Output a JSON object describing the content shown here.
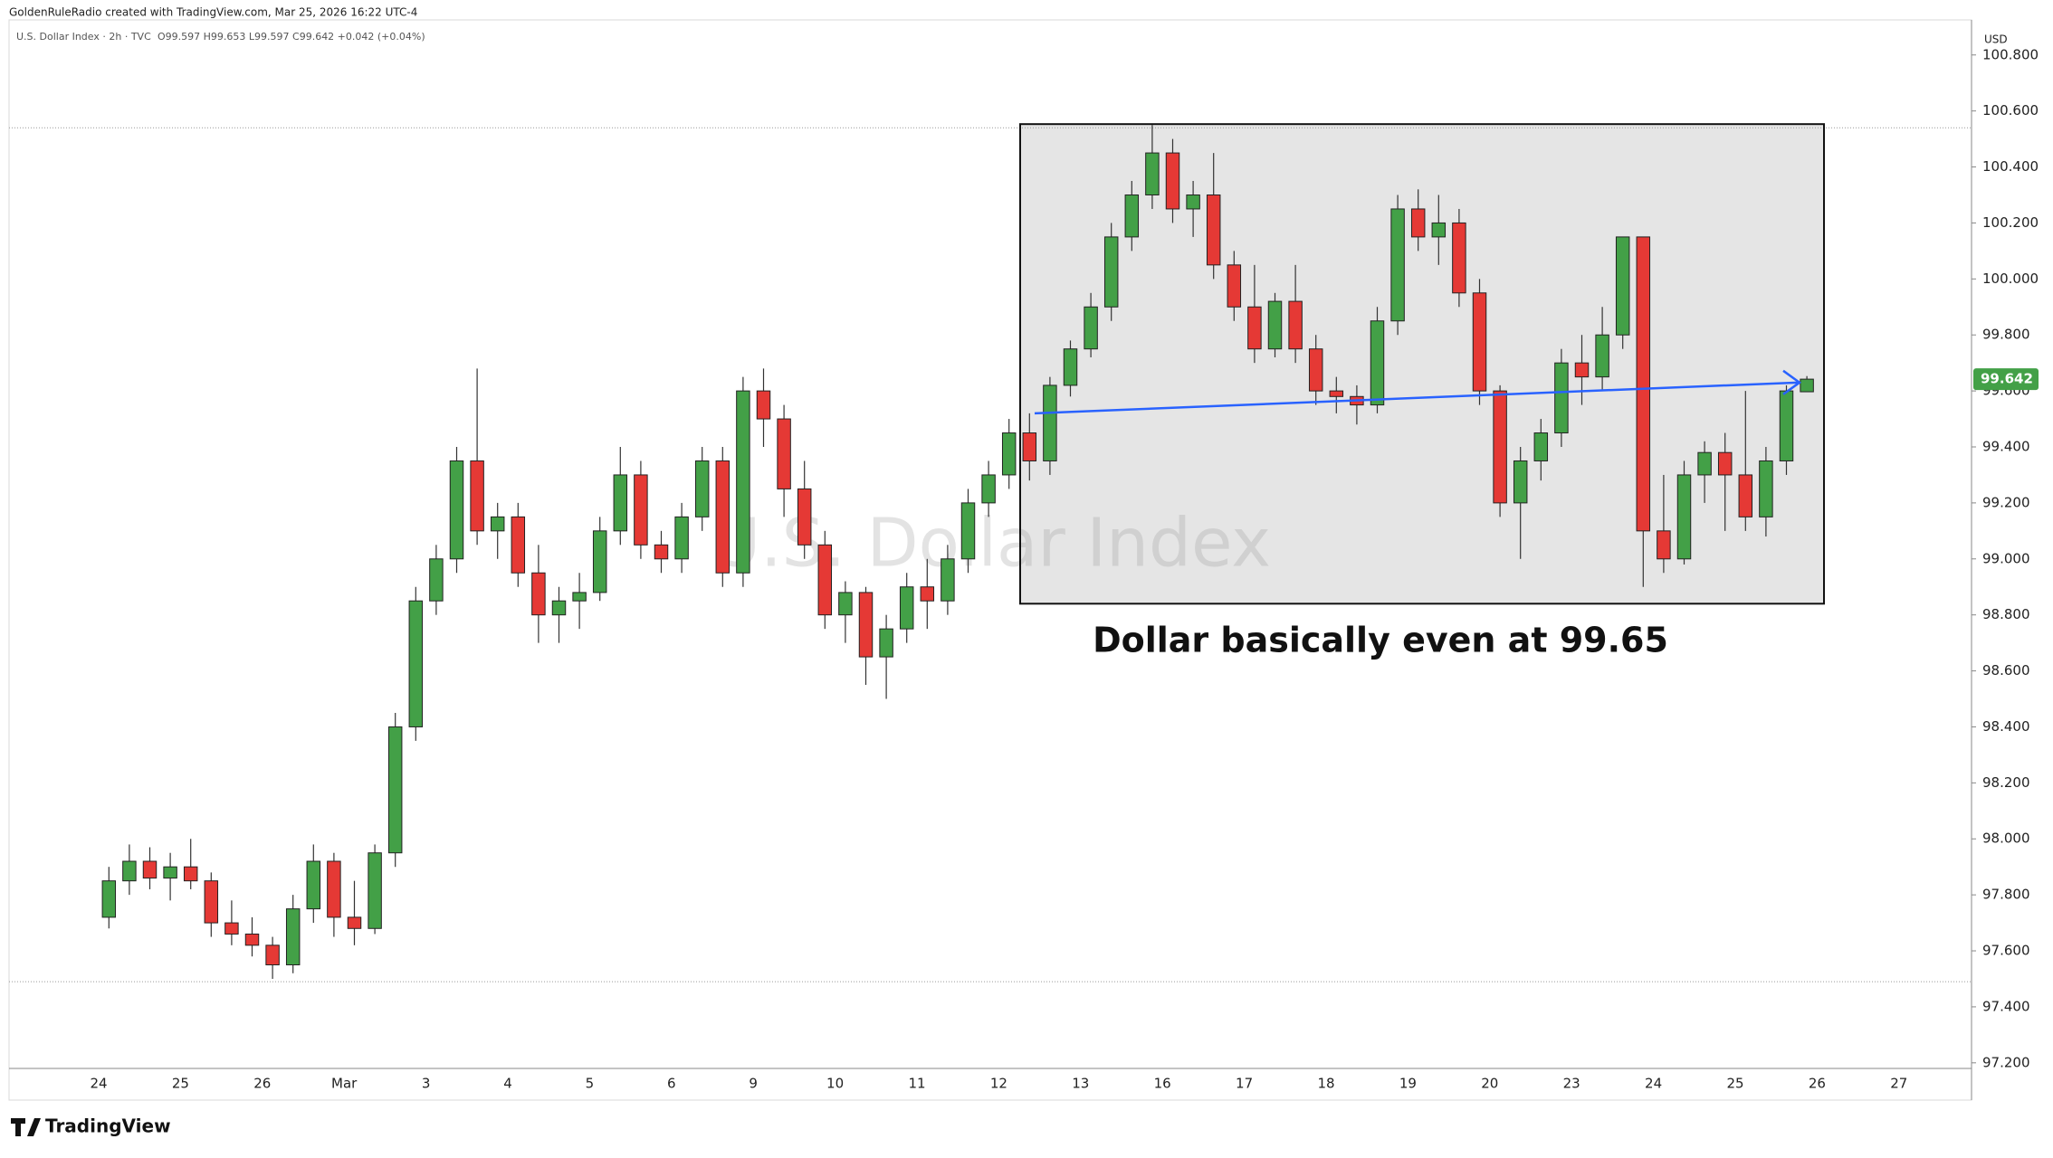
{
  "header": "GoldenRuleRadio created with TradingView.com, Mar 25, 2026 16:22 UTC-4",
  "symbol": "U.S. Dollar Index · 2h · TVC",
  "ohlc_summary": "O99.597 H99.653 L99.597 C99.642 +0.042 (+0.04%)",
  "brand": "TradingView",
  "chart_data": {
    "type": "candlestick",
    "watermark": "U.S. Dollar Index",
    "annotation": "Dollar basically even at 99.65",
    "currency": "USD",
    "current_price": {
      "value": 99.642,
      "label": "99.642"
    },
    "up_color": "#43a047",
    "down_color": "#e53935",
    "categories": [
      "24",
      "25",
      "26",
      "Mar",
      "3",
      "4",
      "5",
      "6",
      "9",
      "10",
      "11",
      "12",
      "13",
      "16",
      "17",
      "18",
      "19",
      "20",
      "23",
      "24",
      "25",
      "26",
      "27"
    ],
    "ohlc": [
      [
        97.72,
        97.9,
        97.68,
        97.85
      ],
      [
        97.85,
        97.98,
        97.8,
        97.92
      ],
      [
        97.92,
        97.97,
        97.82,
        97.86
      ],
      [
        97.86,
        97.95,
        97.78,
        97.9
      ],
      [
        97.9,
        98.0,
        97.82,
        97.85
      ],
      [
        97.85,
        97.88,
        97.65,
        97.7
      ],
      [
        97.7,
        97.78,
        97.62,
        97.66
      ],
      [
        97.66,
        97.72,
        97.58,
        97.62
      ],
      [
        97.62,
        97.65,
        97.5,
        97.55
      ],
      [
        97.55,
        97.8,
        97.52,
        97.75
      ],
      [
        97.75,
        97.98,
        97.7,
        97.92
      ],
      [
        97.92,
        97.95,
        97.65,
        97.72
      ],
      [
        97.72,
        97.85,
        97.62,
        97.68
      ],
      [
        97.68,
        97.98,
        97.66,
        97.95
      ],
      [
        97.95,
        98.45,
        97.9,
        98.4
      ],
      [
        98.4,
        98.9,
        98.35,
        98.85
      ],
      [
        98.85,
        99.05,
        98.8,
        99.0
      ],
      [
        99.0,
        99.4,
        98.95,
        99.35
      ],
      [
        99.35,
        99.68,
        99.05,
        99.1
      ],
      [
        99.1,
        99.2,
        99.0,
        99.15
      ],
      [
        99.15,
        99.2,
        98.9,
        98.95
      ],
      [
        98.95,
        99.05,
        98.7,
        98.8
      ],
      [
        98.8,
        98.9,
        98.7,
        98.85
      ],
      [
        98.85,
        98.95,
        98.75,
        98.88
      ],
      [
        98.88,
        99.15,
        98.85,
        99.1
      ],
      [
        99.1,
        99.4,
        99.05,
        99.3
      ],
      [
        99.3,
        99.35,
        99.0,
        99.05
      ],
      [
        99.05,
        99.1,
        98.95,
        99.0
      ],
      [
        99.0,
        99.2,
        98.95,
        99.15
      ],
      [
        99.15,
        99.4,
        99.1,
        99.35
      ],
      [
        99.35,
        99.4,
        98.9,
        98.95
      ],
      [
        98.95,
        99.65,
        98.9,
        99.6
      ],
      [
        99.6,
        99.68,
        99.4,
        99.5
      ],
      [
        99.5,
        99.55,
        99.15,
        99.25
      ],
      [
        99.25,
        99.35,
        99.0,
        99.05
      ],
      [
        99.05,
        99.1,
        98.75,
        98.8
      ],
      [
        98.8,
        98.92,
        98.7,
        98.88
      ],
      [
        98.88,
        98.9,
        98.55,
        98.65
      ],
      [
        98.65,
        98.8,
        98.5,
        98.75
      ],
      [
        98.75,
        98.95,
        98.7,
        98.9
      ],
      [
        98.9,
        99.0,
        98.75,
        98.85
      ],
      [
        98.85,
        99.05,
        98.8,
        99.0
      ],
      [
        99.0,
        99.25,
        98.95,
        99.2
      ],
      [
        99.2,
        99.35,
        99.15,
        99.3
      ],
      [
        99.3,
        99.5,
        99.25,
        99.45
      ],
      [
        99.45,
        99.52,
        99.28,
        99.35
      ],
      [
        99.35,
        99.65,
        99.3,
        99.62
      ],
      [
        99.62,
        99.78,
        99.58,
        99.75
      ],
      [
        99.75,
        99.95,
        99.72,
        99.9
      ],
      [
        99.9,
        100.2,
        99.85,
        100.15
      ],
      [
        100.15,
        100.35,
        100.1,
        100.3
      ],
      [
        100.3,
        100.55,
        100.25,
        100.45
      ],
      [
        100.45,
        100.5,
        100.2,
        100.25
      ],
      [
        100.25,
        100.35,
        100.15,
        100.3
      ],
      [
        100.3,
        100.45,
        100.0,
        100.05
      ],
      [
        100.05,
        100.1,
        99.85,
        99.9
      ],
      [
        99.9,
        100.05,
        99.7,
        99.75
      ],
      [
        99.75,
        99.95,
        99.72,
        99.92
      ],
      [
        99.92,
        100.05,
        99.7,
        99.75
      ],
      [
        99.75,
        99.8,
        99.55,
        99.6
      ],
      [
        99.6,
        99.65,
        99.52,
        99.58
      ],
      [
        99.58,
        99.62,
        99.48,
        99.55
      ],
      [
        99.55,
        99.9,
        99.52,
        99.85
      ],
      [
        99.85,
        100.3,
        99.8,
        100.25
      ],
      [
        100.25,
        100.32,
        100.1,
        100.15
      ],
      [
        100.15,
        100.3,
        100.05,
        100.2
      ],
      [
        100.2,
        100.25,
        99.9,
        99.95
      ],
      [
        99.95,
        100.0,
        99.55,
        99.6
      ],
      [
        99.6,
        99.62,
        99.15,
        99.2
      ],
      [
        99.2,
        99.4,
        99.0,
        99.35
      ],
      [
        99.35,
        99.5,
        99.28,
        99.45
      ],
      [
        99.45,
        99.75,
        99.4,
        99.7
      ],
      [
        99.7,
        99.8,
        99.55,
        99.65
      ],
      [
        99.65,
        99.9,
        99.6,
        99.8
      ],
      [
        99.8,
        100.15,
        99.75,
        100.15
      ],
      [
        100.15,
        100.15,
        98.9,
        99.1
      ],
      [
        99.1,
        99.3,
        98.95,
        99.0
      ],
      [
        99.0,
        99.35,
        98.98,
        99.3
      ],
      [
        99.3,
        99.42,
        99.2,
        99.38
      ],
      [
        99.38,
        99.45,
        99.1,
        99.3
      ],
      [
        99.3,
        99.6,
        99.1,
        99.15
      ],
      [
        99.15,
        99.4,
        99.08,
        99.35
      ],
      [
        99.35,
        99.62,
        99.3,
        99.6
      ],
      [
        99.597,
        99.653,
        99.597,
        99.642
      ]
    ],
    "candles_per_day": 4,
    "ylim": [
      97.18,
      100.88
    ],
    "yticks": [
      {
        "value": 97.2,
        "label": "97.200"
      },
      {
        "value": 97.4,
        "label": "97.400"
      },
      {
        "value": 97.6,
        "label": "97.600"
      },
      {
        "value": 97.8,
        "label": "97.800"
      },
      {
        "value": 98.0,
        "label": "98.000"
      },
      {
        "value": 98.2,
        "label": "98.200"
      },
      {
        "value": 98.4,
        "label": "98.400"
      },
      {
        "value": 98.6,
        "label": "98.600"
      },
      {
        "value": 98.8,
        "label": "98.800"
      },
      {
        "value": 99.0,
        "label": "99.000"
      },
      {
        "value": 99.2,
        "label": "99.200"
      },
      {
        "value": 99.4,
        "label": "99.400"
      },
      {
        "value": 99.6,
        "label": "99.600"
      },
      {
        "value": 99.8,
        "label": "99.800"
      },
      {
        "value": 100.0,
        "label": "100.000"
      },
      {
        "value": 100.2,
        "label": "100.200"
      },
      {
        "value": 100.4,
        "label": "100.400"
      },
      {
        "value": 100.6,
        "label": "100.600"
      },
      {
        "value": 100.8,
        "label": "100.800"
      }
    ],
    "hlines": [
      100.54,
      97.49
    ],
    "box": {
      "top": 100.553,
      "bottom": 98.84
    },
    "arrow": {
      "start": 99.52,
      "end": 99.63
    }
  }
}
